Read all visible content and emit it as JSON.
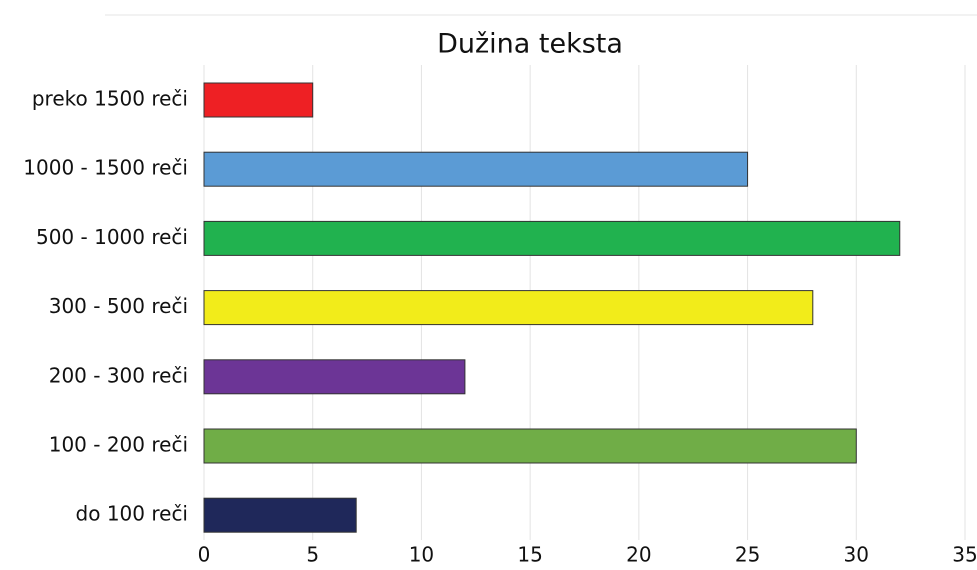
{
  "chart_data": {
    "type": "barh",
    "title": "Dužina teksta",
    "categories": [
      "preko 1500 reči",
      "1000 - 1500 reči",
      "500 - 1000 reči",
      "300 - 500 reči",
      "200 - 300 reči",
      "100 - 200 reči",
      "do 100 reči"
    ],
    "values": [
      5,
      25,
      32,
      28,
      12,
      30,
      7
    ],
    "colors": [
      "#ee2024",
      "#5b9bd5",
      "#21b24f",
      "#f2ec1a",
      "#6c3596",
      "#70ad47",
      "#1f285a"
    ],
    "xlim": [
      0,
      35
    ],
    "xticks": [
      0,
      5,
      10,
      15,
      20,
      25,
      30,
      35
    ],
    "grid": true
  }
}
